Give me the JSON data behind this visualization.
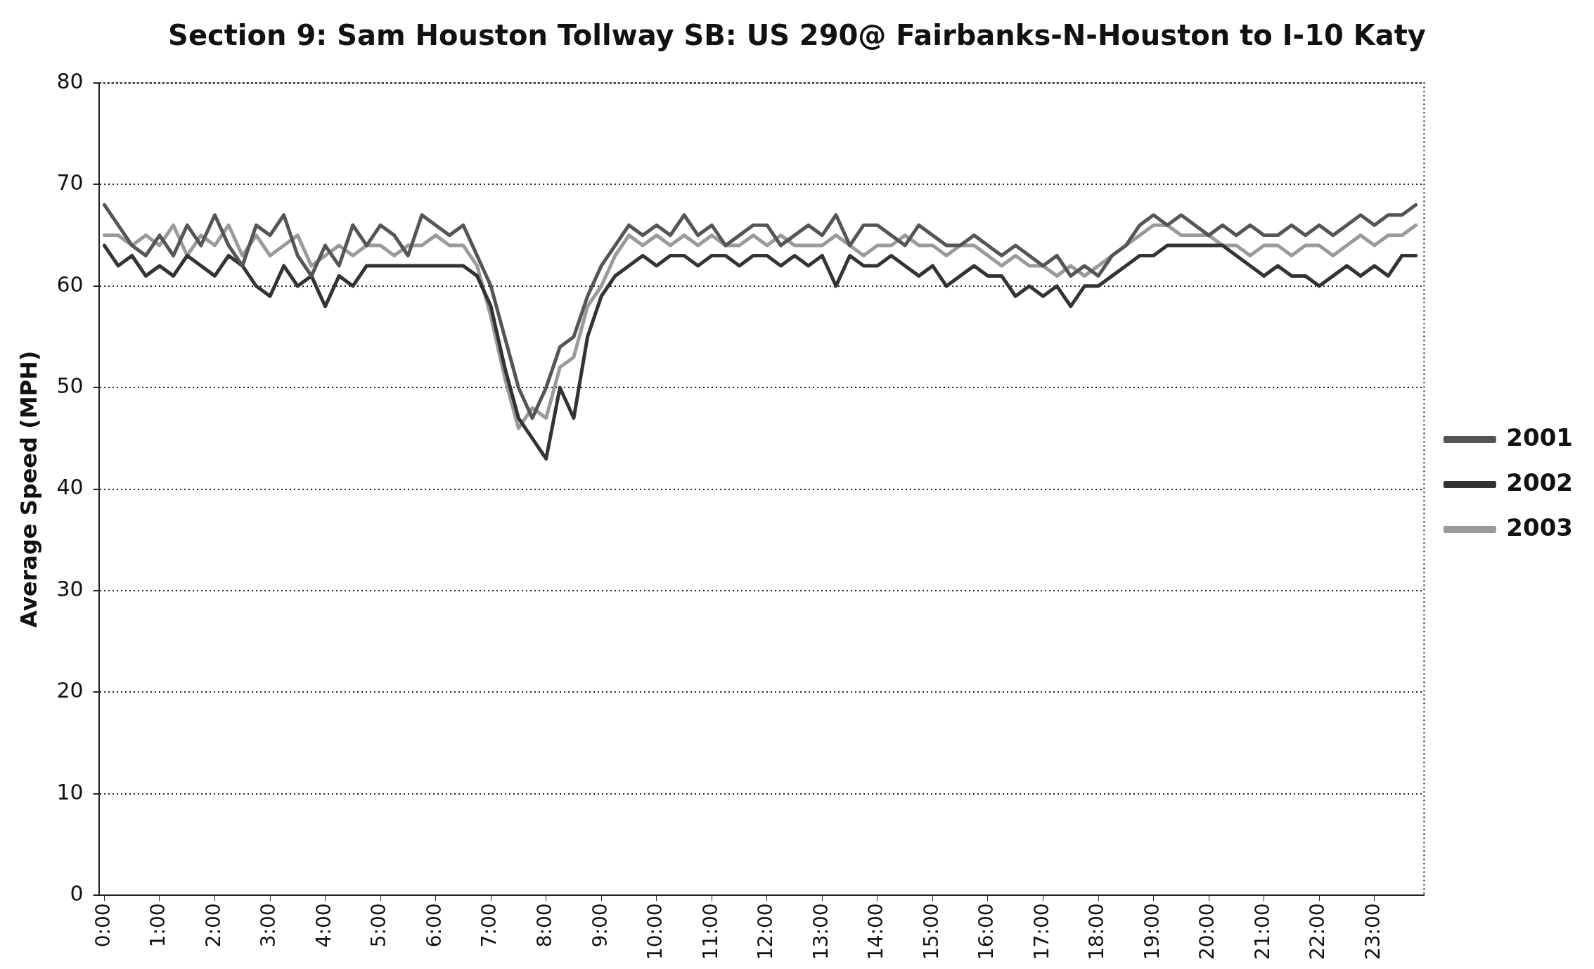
{
  "chart_data": {
    "type": "line",
    "title": "Section 9: Sam Houston Tollway SB: US 290@ Fairbanks-N-Houston to I-10 Katy",
    "ylabel": "Average Speed (MPH)",
    "x": [
      0,
      0.25,
      0.5,
      0.75,
      1,
      1.25,
      1.5,
      1.75,
      2,
      2.25,
      2.5,
      2.75,
      3,
      3.25,
      3.5,
      3.75,
      4,
      4.25,
      4.5,
      4.75,
      5,
      5.25,
      5.5,
      5.75,
      6,
      6.25,
      6.5,
      6.75,
      7,
      7.25,
      7.5,
      7.75,
      8,
      8.25,
      8.5,
      8.75,
      9,
      9.25,
      9.5,
      9.75,
      10,
      10.25,
      10.5,
      10.75,
      11,
      11.25,
      11.5,
      11.75,
      12,
      12.25,
      12.5,
      12.75,
      13,
      13.25,
      13.5,
      13.75,
      14,
      14.25,
      14.5,
      14.75,
      15,
      15.25,
      15.5,
      15.75,
      16,
      16.25,
      16.5,
      16.75,
      17,
      17.25,
      17.5,
      17.75,
      18,
      18.25,
      18.5,
      18.75,
      19,
      19.25,
      19.5,
      19.75,
      20,
      20.25,
      20.5,
      20.75,
      21,
      21.25,
      21.5,
      21.75,
      22,
      22.25,
      22.5,
      22.75,
      23,
      23.25,
      23.5,
      23.75
    ],
    "series": [
      {
        "name": "2001",
        "color": "#555555",
        "values": [
          68,
          66,
          64,
          63,
          65,
          63,
          66,
          64,
          67,
          64,
          62,
          66,
          65,
          67,
          63,
          61,
          64,
          62,
          66,
          64,
          66,
          65,
          63,
          67,
          66,
          65,
          66,
          63,
          60,
          55,
          50,
          47,
          50,
          54,
          55,
          59,
          62,
          64,
          66,
          65,
          66,
          65,
          67,
          65,
          66,
          64,
          65,
          66,
          66,
          64,
          65,
          66,
          65,
          67,
          64,
          66,
          66,
          65,
          64,
          66,
          65,
          64,
          64,
          65,
          64,
          63,
          64,
          63,
          62,
          63,
          61,
          62,
          61,
          63,
          64,
          66,
          67,
          66,
          67,
          66,
          65,
          66,
          65,
          66,
          65,
          65,
          66,
          65,
          66,
          65,
          66,
          67,
          66,
          67,
          67,
          68
        ]
      },
      {
        "name": "2002",
        "color": "#333333",
        "values": [
          64,
          62,
          63,
          61,
          62,
          61,
          63,
          62,
          61,
          63,
          62,
          60,
          59,
          62,
          60,
          61,
          58,
          61,
          60,
          62,
          62,
          62,
          62,
          62,
          62,
          62,
          62,
          61,
          58,
          52,
          47,
          45,
          43,
          50,
          47,
          55,
          59,
          61,
          62,
          63,
          62,
          63,
          63,
          62,
          63,
          63,
          62,
          63,
          63,
          62,
          63,
          62,
          63,
          60,
          63,
          62,
          62,
          63,
          62,
          61,
          62,
          60,
          61,
          62,
          61,
          61,
          59,
          60,
          59,
          60,
          58,
          60,
          60,
          61,
          62,
          63,
          63,
          64,
          64,
          64,
          64,
          64,
          63,
          62,
          61,
          62,
          61,
          61,
          60,
          61,
          62,
          61,
          62,
          61,
          63,
          63
        ]
      },
      {
        "name": "2003",
        "color": "#9a9a9a",
        "values": [
          65,
          65,
          64,
          65,
          64,
          66,
          63,
          65,
          64,
          66,
          63,
          65,
          63,
          64,
          65,
          62,
          63,
          64,
          63,
          64,
          64,
          63,
          64,
          64,
          65,
          64,
          64,
          62,
          57,
          51,
          46,
          48,
          47,
          52,
          53,
          58,
          60,
          63,
          65,
          64,
          65,
          64,
          65,
          64,
          65,
          64,
          64,
          65,
          64,
          65,
          64,
          64,
          64,
          65,
          64,
          63,
          64,
          64,
          65,
          64,
          64,
          63,
          64,
          64,
          63,
          62,
          63,
          62,
          62,
          61,
          62,
          61,
          62,
          63,
          64,
          65,
          66,
          66,
          65,
          65,
          65,
          64,
          64,
          63,
          64,
          64,
          63,
          64,
          64,
          63,
          64,
          65,
          64,
          65,
          65,
          66
        ]
      }
    ],
    "xlim": [
      -0.1,
      23.9
    ],
    "xticks": [
      {
        "value": 0,
        "label": "0:00"
      },
      {
        "value": 1,
        "label": "1:00"
      },
      {
        "value": 2,
        "label": "2:00"
      },
      {
        "value": 3,
        "label": "3:00"
      },
      {
        "value": 4,
        "label": "4:00"
      },
      {
        "value": 5,
        "label": "5:00"
      },
      {
        "value": 6,
        "label": "6:00"
      },
      {
        "value": 7,
        "label": "7:00"
      },
      {
        "value": 8,
        "label": "8:00"
      },
      {
        "value": 9,
        "label": "9:00"
      },
      {
        "value": 10,
        "label": "10:00"
      },
      {
        "value": 11,
        "label": "11:00"
      },
      {
        "value": 12,
        "label": "12:00"
      },
      {
        "value": 13,
        "label": "13:00"
      },
      {
        "value": 14,
        "label": "14:00"
      },
      {
        "value": 15,
        "label": "15:00"
      },
      {
        "value": 16,
        "label": "16:00"
      },
      {
        "value": 17,
        "label": "17:00"
      },
      {
        "value": 18,
        "label": "18:00"
      },
      {
        "value": 19,
        "label": "19:00"
      },
      {
        "value": 20,
        "label": "20:00"
      },
      {
        "value": 21,
        "label": "21:00"
      },
      {
        "value": 22,
        "label": "22:00"
      },
      {
        "value": 23,
        "label": "23:00"
      }
    ],
    "ylim": [
      0,
      80
    ],
    "yticks": [
      0,
      10,
      20,
      30,
      40,
      50,
      60,
      70,
      80
    ],
    "grid": "y",
    "legend": "right",
    "marker": "none",
    "line_style": "solid"
  }
}
